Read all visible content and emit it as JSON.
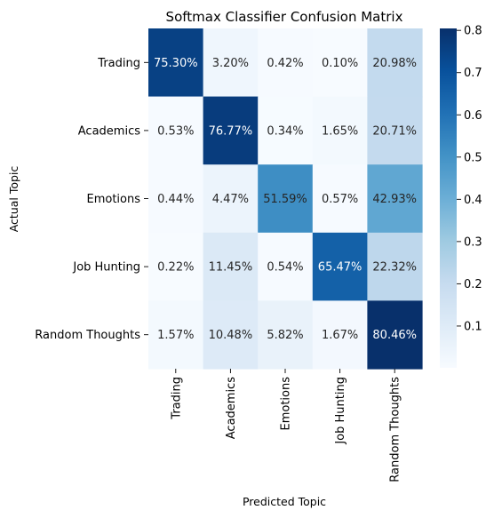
{
  "chart_data": {
    "type": "heatmap",
    "title": "Softmax Classifier Confusion Matrix",
    "xlabel": "Predicted Topic",
    "ylabel": "Actual Topic",
    "x_categories": [
      "Trading",
      "Academics",
      "Emotions",
      "Job Hunting",
      "Random Thoughts"
    ],
    "y_categories": [
      "Trading",
      "Academics",
      "Emotions",
      "Job Hunting",
      "Random Thoughts"
    ],
    "values": [
      [
        0.753,
        0.032,
        0.0042,
        0.001,
        0.2098
      ],
      [
        0.0053,
        0.7677,
        0.0034,
        0.0165,
        0.2071
      ],
      [
        0.0044,
        0.0447,
        0.5159,
        0.0057,
        0.4293
      ],
      [
        0.0022,
        0.1145,
        0.0054,
        0.6547,
        0.2232
      ],
      [
        0.0157,
        0.1048,
        0.0582,
        0.0167,
        0.8046
      ]
    ],
    "cell_labels": [
      [
        "75.30%",
        "3.20%",
        "0.42%",
        "0.10%",
        "20.98%"
      ],
      [
        "0.53%",
        "76.77%",
        "0.34%",
        "1.65%",
        "20.71%"
      ],
      [
        "0.44%",
        "4.47%",
        "51.59%",
        "0.57%",
        "42.93%"
      ],
      [
        "0.22%",
        "11.45%",
        "0.54%",
        "65.47%",
        "22.32%"
      ],
      [
        "1.57%",
        "10.48%",
        "5.82%",
        "1.67%",
        "80.46%"
      ]
    ],
    "colormap": "Blues",
    "color_range": [
      0.001,
      0.8046
    ],
    "colorbar_ticks": [
      0.1,
      0.2,
      0.3,
      0.4,
      0.5,
      0.6,
      0.7,
      0.8
    ],
    "colorbar_tick_labels": [
      "0.1",
      "0.2",
      "0.3",
      "0.4",
      "0.5",
      "0.6",
      "0.7",
      "0.8"
    ],
    "grid": false
  }
}
